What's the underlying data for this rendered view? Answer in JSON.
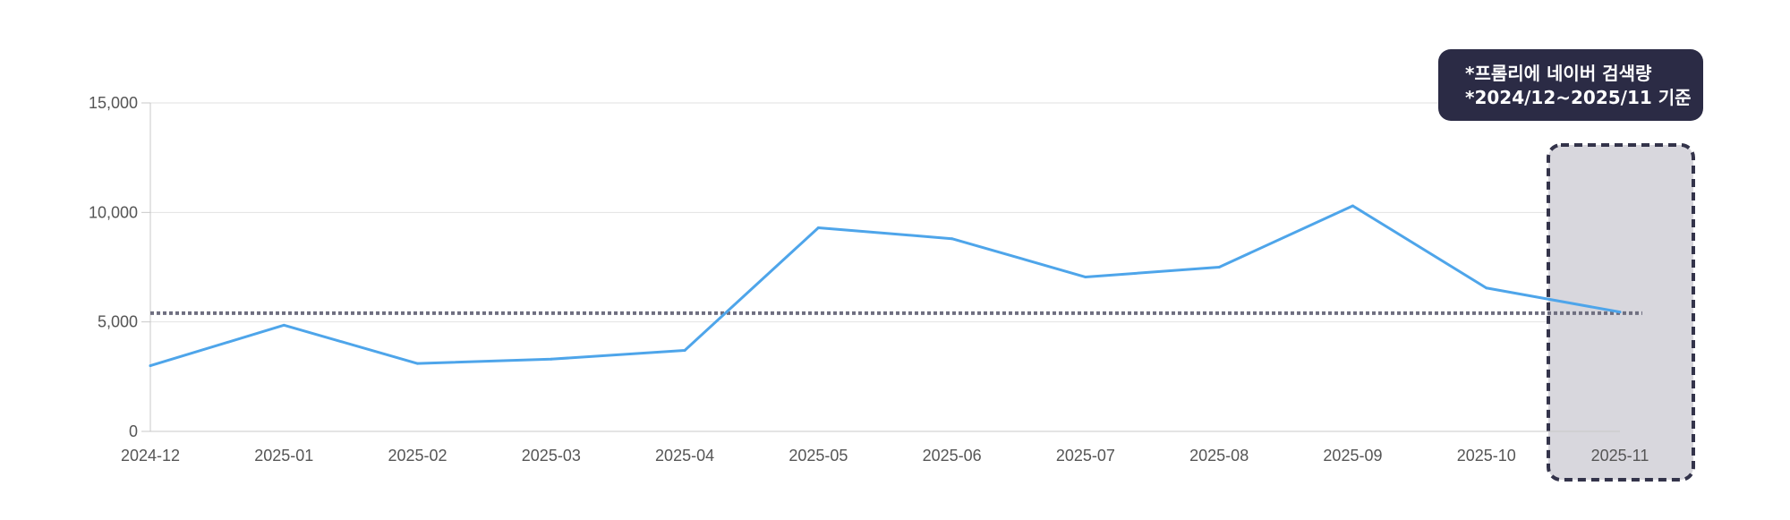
{
  "colors": {
    "line": "#4ea5ea",
    "average_line": "#6f6f80",
    "highlight_fill": "#d8d7dd",
    "highlight_border": "#33334a",
    "note_bg": "#2b2b45",
    "grid": "#e2e2e2",
    "axis": "#c8c8c8"
  },
  "note": {
    "line1": "*프롬리에 네이버 검색량",
    "line2": "*2024/12~2025/11 기준"
  },
  "chart_data": {
    "type": "line",
    "title": "",
    "xlabel": "",
    "ylabel": "",
    "categories": [
      "2024-12",
      "2025-01",
      "2025-02",
      "2025-03",
      "2025-04",
      "2025-05",
      "2025-06",
      "2025-07",
      "2025-08",
      "2025-09",
      "2025-10",
      "2025-11"
    ],
    "series": [
      {
        "values": [
          3000,
          4850,
          3100,
          3300,
          3700,
          9300,
          8800,
          7050,
          7500,
          10300,
          6550,
          5450
        ]
      }
    ],
    "reference_line": {
      "value": 5400,
      "style": "dotted"
    },
    "highlight_category": "2025-11",
    "ylim": [
      0,
      15000
    ],
    "yticks": [
      0,
      5000,
      10000,
      15000
    ],
    "ytick_labels": [
      "0",
      "5,000",
      "10,000",
      "15,000"
    ],
    "grid": true,
    "legend": "none"
  }
}
